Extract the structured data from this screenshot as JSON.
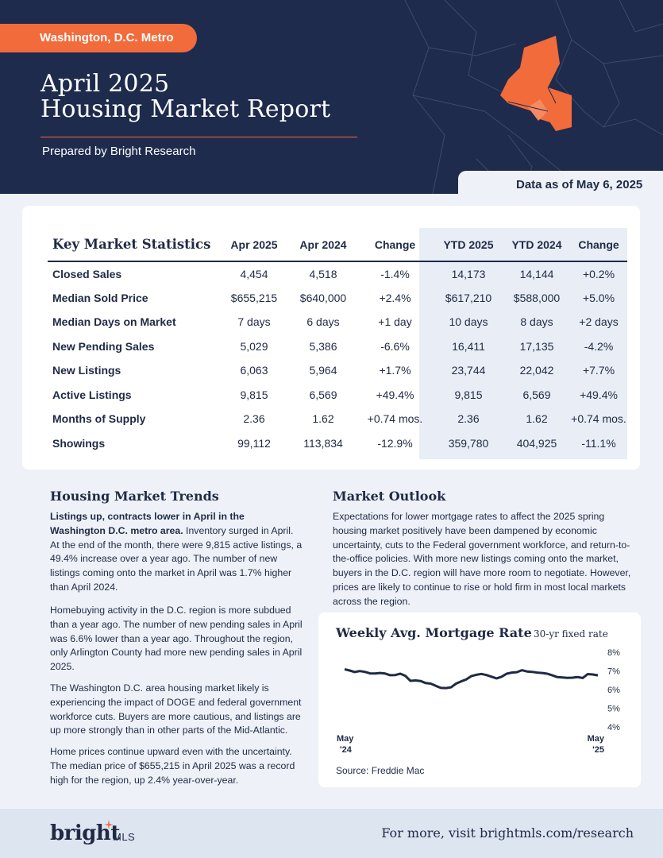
{
  "header": {
    "region": "Washington, D.C. Metro",
    "title_line1": "April 2025",
    "title_line2": "Housing Market Report",
    "prepared_by": "Prepared by Bright Research",
    "data_as_of": "Data as of May 6, 2025"
  },
  "stats": {
    "title": "Key Market Statistics",
    "columns": [
      "Apr 2025",
      "Apr 2024",
      "Change",
      "YTD 2025",
      "YTD 2024",
      "Change"
    ],
    "rows": [
      {
        "label": "Closed Sales",
        "values": [
          "4,454",
          "4,518",
          "-1.4%",
          "14,173",
          "14,144",
          "+0.2%"
        ]
      },
      {
        "label": "Median Sold Price",
        "values": [
          "$655,215",
          "$640,000",
          "+2.4%",
          "$617,210",
          "$588,000",
          "+5.0%"
        ]
      },
      {
        "label": "Median Days on Market",
        "values": [
          "7 days",
          "6 days",
          "+1 day",
          "10 days",
          "8 days",
          "+2 days"
        ]
      },
      {
        "label": "New Pending Sales",
        "values": [
          "5,029",
          "5,386",
          "-6.6%",
          "16,411",
          "17,135",
          "-4.2%"
        ]
      },
      {
        "label": "New Listings",
        "values": [
          "6,063",
          "5,964",
          "+1.7%",
          "23,744",
          "22,042",
          "+7.7%"
        ]
      },
      {
        "label": "Active Listings",
        "values": [
          "9,815",
          "6,569",
          "+49.4%",
          "9,815",
          "6,569",
          "+49.4%"
        ]
      },
      {
        "label": "Months of Supply",
        "values": [
          "2.36",
          "1.62",
          "+0.74 mos.",
          "2.36",
          "1.62",
          "+0.74 mos."
        ]
      },
      {
        "label": "Showings",
        "values": [
          "99,112",
          "113,834",
          "-12.9%",
          "359,780",
          "404,925",
          "-11.1%"
        ]
      }
    ]
  },
  "trends": {
    "title": "Housing Market Trends",
    "p1_bold": "Listings up, contracts lower in April in the Washington D.C. metro area.",
    "p1_rest": " Inventory surged in April. At the end of the month, there were 9,815 active listings, a 49.4% increase over a year ago. The number of new listings coming onto the market in April was 1.7% higher than April 2024.",
    "p2": "Homebuying activity in the D.C. region is more subdued than a year ago. The number of new pending sales in April was 6.6% lower than a year ago. Throughout the region, only Arlington County had more new pending sales in April 2025.",
    "p3": "The Washington D.C. area housing market likely is experiencing the impact of DOGE and federal government workforce cuts. Buyers are more cautious, and listings are up more strongly than in other parts of the Mid-Atlantic.",
    "p4": "Home prices continue upward even with the uncertainty. The median price of $655,215 in April 2025 was a record high for the region, up 2.4% year-over-year."
  },
  "outlook": {
    "title": "Market Outlook",
    "text": "Expectations for lower mortgage rates to affect the 2025 spring housing market positively have been dampened by economic uncertainty, cuts to the Federal government workforce, and return-to-the-office policies. With more new listings coming onto the market, buyers in the D.C. region will have more room to negotiate. However, prices are likely to continue to rise or hold firm in most local markets across the region."
  },
  "chart_data": {
    "type": "line",
    "title": "Weekly Avg. Mortgage Rate",
    "subtitle": "30-yr fixed rate",
    "source": "Source: Freddie Mac",
    "xlabel_start": [
      "May",
      "'24"
    ],
    "xlabel_end": [
      "May",
      "'25"
    ],
    "ylim": [
      4,
      8
    ],
    "yticks": [
      "4%",
      "5%",
      "6%",
      "7%",
      "8%"
    ],
    "series": [
      {
        "values": [
          7.09,
          7.02,
          6.94,
          6.99,
          6.95,
          6.87,
          6.86,
          6.89,
          6.86,
          6.77,
          6.78,
          6.85,
          6.73,
          6.47,
          6.49,
          6.46,
          6.35,
          6.32,
          6.2,
          6.09,
          6.08,
          6.12,
          6.32,
          6.44,
          6.54,
          6.72,
          6.79,
          6.84,
          6.78,
          6.69,
          6.6,
          6.69,
          6.85,
          6.91,
          6.93,
          7.04,
          6.97,
          6.95,
          6.91,
          6.89,
          6.85,
          6.76,
          6.67,
          6.65,
          6.63,
          6.64,
          6.67,
          6.62,
          6.83,
          6.81,
          6.76
        ]
      }
    ],
    "color": "#1f2a44"
  },
  "footer": {
    "logo_main": "bright",
    "logo_sub": "MLS",
    "link": "For more, visit brightmls.com/research"
  },
  "colors": {
    "navy": "#1e2b4d",
    "accent": "#f26b3a"
  }
}
